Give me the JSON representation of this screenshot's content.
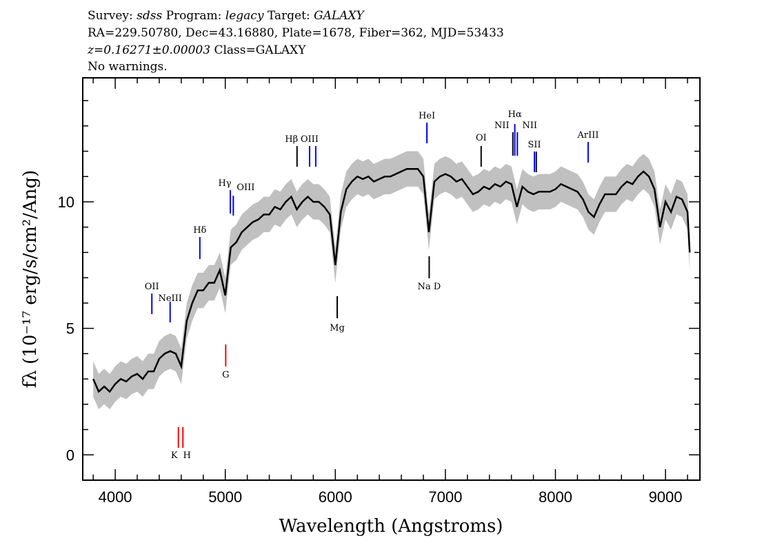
{
  "header": {
    "line1": {
      "survey_label": "Survey: ",
      "survey": "sdss",
      "program_label": " Program: ",
      "program": "legacy",
      "target_label": " Target: ",
      "target": "GALAXY"
    },
    "line2": "RA=229.50780, Dec=43.16880, Plate=1678, Fiber=362, MJD=53433",
    "line3": {
      "z": "z=0.16271±0.00003",
      "class": " Class=GALAXY"
    },
    "line4": "No warnings."
  },
  "chart_data": {
    "type": "line",
    "title": "",
    "xlabel": "Wavelength (Angstroms)",
    "ylabel": "fλ (10⁻¹⁷ erg/s/cm²/Ang)",
    "xlim": [
      3705,
      9313
    ],
    "ylim": [
      -1.0,
      14.9
    ],
    "xticks": [
      4000,
      5000,
      6000,
      7000,
      8000,
      9000
    ],
    "xtick_labels": [
      "4000",
      "5000",
      "6000",
      "7000",
      "8000",
      "9000"
    ],
    "yticks": [
      0,
      5,
      10
    ],
    "ytick_labels": [
      "0",
      "5",
      "10"
    ],
    "grid": false,
    "colors": {
      "flux": "#000000",
      "error_band": "#c0c0c0",
      "emission": "#0000ff",
      "absorption": "#ff0000",
      "other": "#000000"
    },
    "error_band_halfwidth": 0.7,
    "spectrum": {
      "x": [
        3800,
        3850,
        3900,
        3950,
        4000,
        4050,
        4100,
        4150,
        4200,
        4250,
        4300,
        4350,
        4400,
        4450,
        4500,
        4550,
        4600,
        4650,
        4700,
        4750,
        4800,
        4850,
        4900,
        4950,
        5000,
        5050,
        5100,
        5150,
        5200,
        5250,
        5300,
        5350,
        5400,
        5450,
        5500,
        5550,
        5600,
        5650,
        5700,
        5750,
        5800,
        5850,
        5900,
        5950,
        6000,
        6050,
        6100,
        6150,
        6200,
        6250,
        6300,
        6350,
        6400,
        6450,
        6500,
        6550,
        6600,
        6650,
        6700,
        6750,
        6800,
        6850,
        6900,
        6950,
        7000,
        7050,
        7100,
        7150,
        7200,
        7250,
        7300,
        7350,
        7400,
        7450,
        7500,
        7550,
        7600,
        7650,
        7700,
        7750,
        7800,
        7850,
        7900,
        7950,
        8000,
        8050,
        8100,
        8150,
        8200,
        8250,
        8300,
        8350,
        8400,
        8450,
        8500,
        8550,
        8600,
        8650,
        8700,
        8750,
        8800,
        8850,
        8900,
        8950,
        9000,
        9050,
        9100,
        9150,
        9200,
        9220
      ],
      "flux": [
        3.0,
        2.5,
        2.7,
        2.5,
        2.8,
        3.0,
        2.9,
        3.1,
        3.2,
        3.0,
        3.3,
        3.3,
        3.8,
        4.0,
        4.1,
        4.0,
        3.5,
        5.3,
        6.0,
        6.5,
        6.5,
        6.8,
        6.8,
        7.3,
        6.3,
        8.2,
        8.4,
        8.8,
        9.0,
        9.2,
        9.3,
        9.5,
        9.5,
        9.8,
        9.7,
        10.0,
        10.2,
        9.7,
        10.0,
        10.2,
        10.0,
        10.0,
        9.8,
        9.5,
        7.5,
        9.6,
        10.5,
        10.8,
        11.0,
        10.9,
        11.0,
        10.8,
        10.9,
        11.0,
        11.0,
        11.1,
        11.2,
        11.3,
        11.3,
        11.3,
        11.0,
        8.8,
        10.8,
        11.0,
        11.1,
        11.0,
        10.8,
        10.9,
        10.6,
        10.3,
        10.4,
        10.6,
        10.5,
        10.7,
        10.6,
        10.8,
        10.7,
        9.8,
        10.6,
        10.4,
        10.3,
        10.4,
        10.4,
        10.4,
        10.5,
        10.7,
        10.6,
        10.5,
        10.4,
        10.1,
        9.6,
        9.4,
        9.9,
        10.3,
        10.3,
        10.3,
        10.6,
        10.8,
        10.7,
        11.0,
        11.2,
        11.0,
        10.5,
        9.0,
        10.0,
        9.6,
        10.2,
        10.1,
        9.6,
        8.0
      ]
    },
    "lines": [
      {
        "label": "OII",
        "wavelength": 4333,
        "kind": "emission"
      },
      {
        "label": "NeIII",
        "wavelength": 4499,
        "kind": "emission"
      },
      {
        "label": "Hδ",
        "wavelength": 4769,
        "kind": "emission"
      },
      {
        "label": "Hγ",
        "wavelength": 5046,
        "kind": "emission"
      },
      {
        "label": "OIII",
        "wavelength": 5073,
        "kind": "emission"
      },
      {
        "label": "Hβ",
        "wavelength": 5652,
        "kind": "other"
      },
      {
        "label": "OIII",
        "wavelength": 5766,
        "kind": "emission"
      },
      {
        "label": "OIII",
        "wavelength": 5822,
        "kind": "emission",
        "label_hidden": true
      },
      {
        "label": "HeI",
        "wavelength": 6832,
        "kind": "emission"
      },
      {
        "label": "OI",
        "wavelength": 7325,
        "kind": "other"
      },
      {
        "label": "NII",
        "wavelength": 7613,
        "kind": "other"
      },
      {
        "label": "Hα",
        "wavelength": 7631,
        "kind": "emission"
      },
      {
        "label": "NII",
        "wavelength": 7654,
        "kind": "emission"
      },
      {
        "label": "SII",
        "wavelength": 7809,
        "kind": "emission"
      },
      {
        "label": "SII",
        "wavelength": 7826,
        "kind": "other",
        "label_hidden": true
      },
      {
        "label": "ArIII",
        "wavelength": 8297,
        "kind": "emission"
      },
      {
        "label": "K",
        "wavelength": 4574,
        "kind": "absorption"
      },
      {
        "label": "H",
        "wavelength": 4615,
        "kind": "absorption"
      },
      {
        "label": "G",
        "wavelength": 5004,
        "kind": "absorption"
      },
      {
        "label": "Mg",
        "wavelength": 6017,
        "kind": "absorption_other"
      },
      {
        "label": "Na D",
        "wavelength": 6853,
        "kind": "absorption_other"
      }
    ]
  }
}
